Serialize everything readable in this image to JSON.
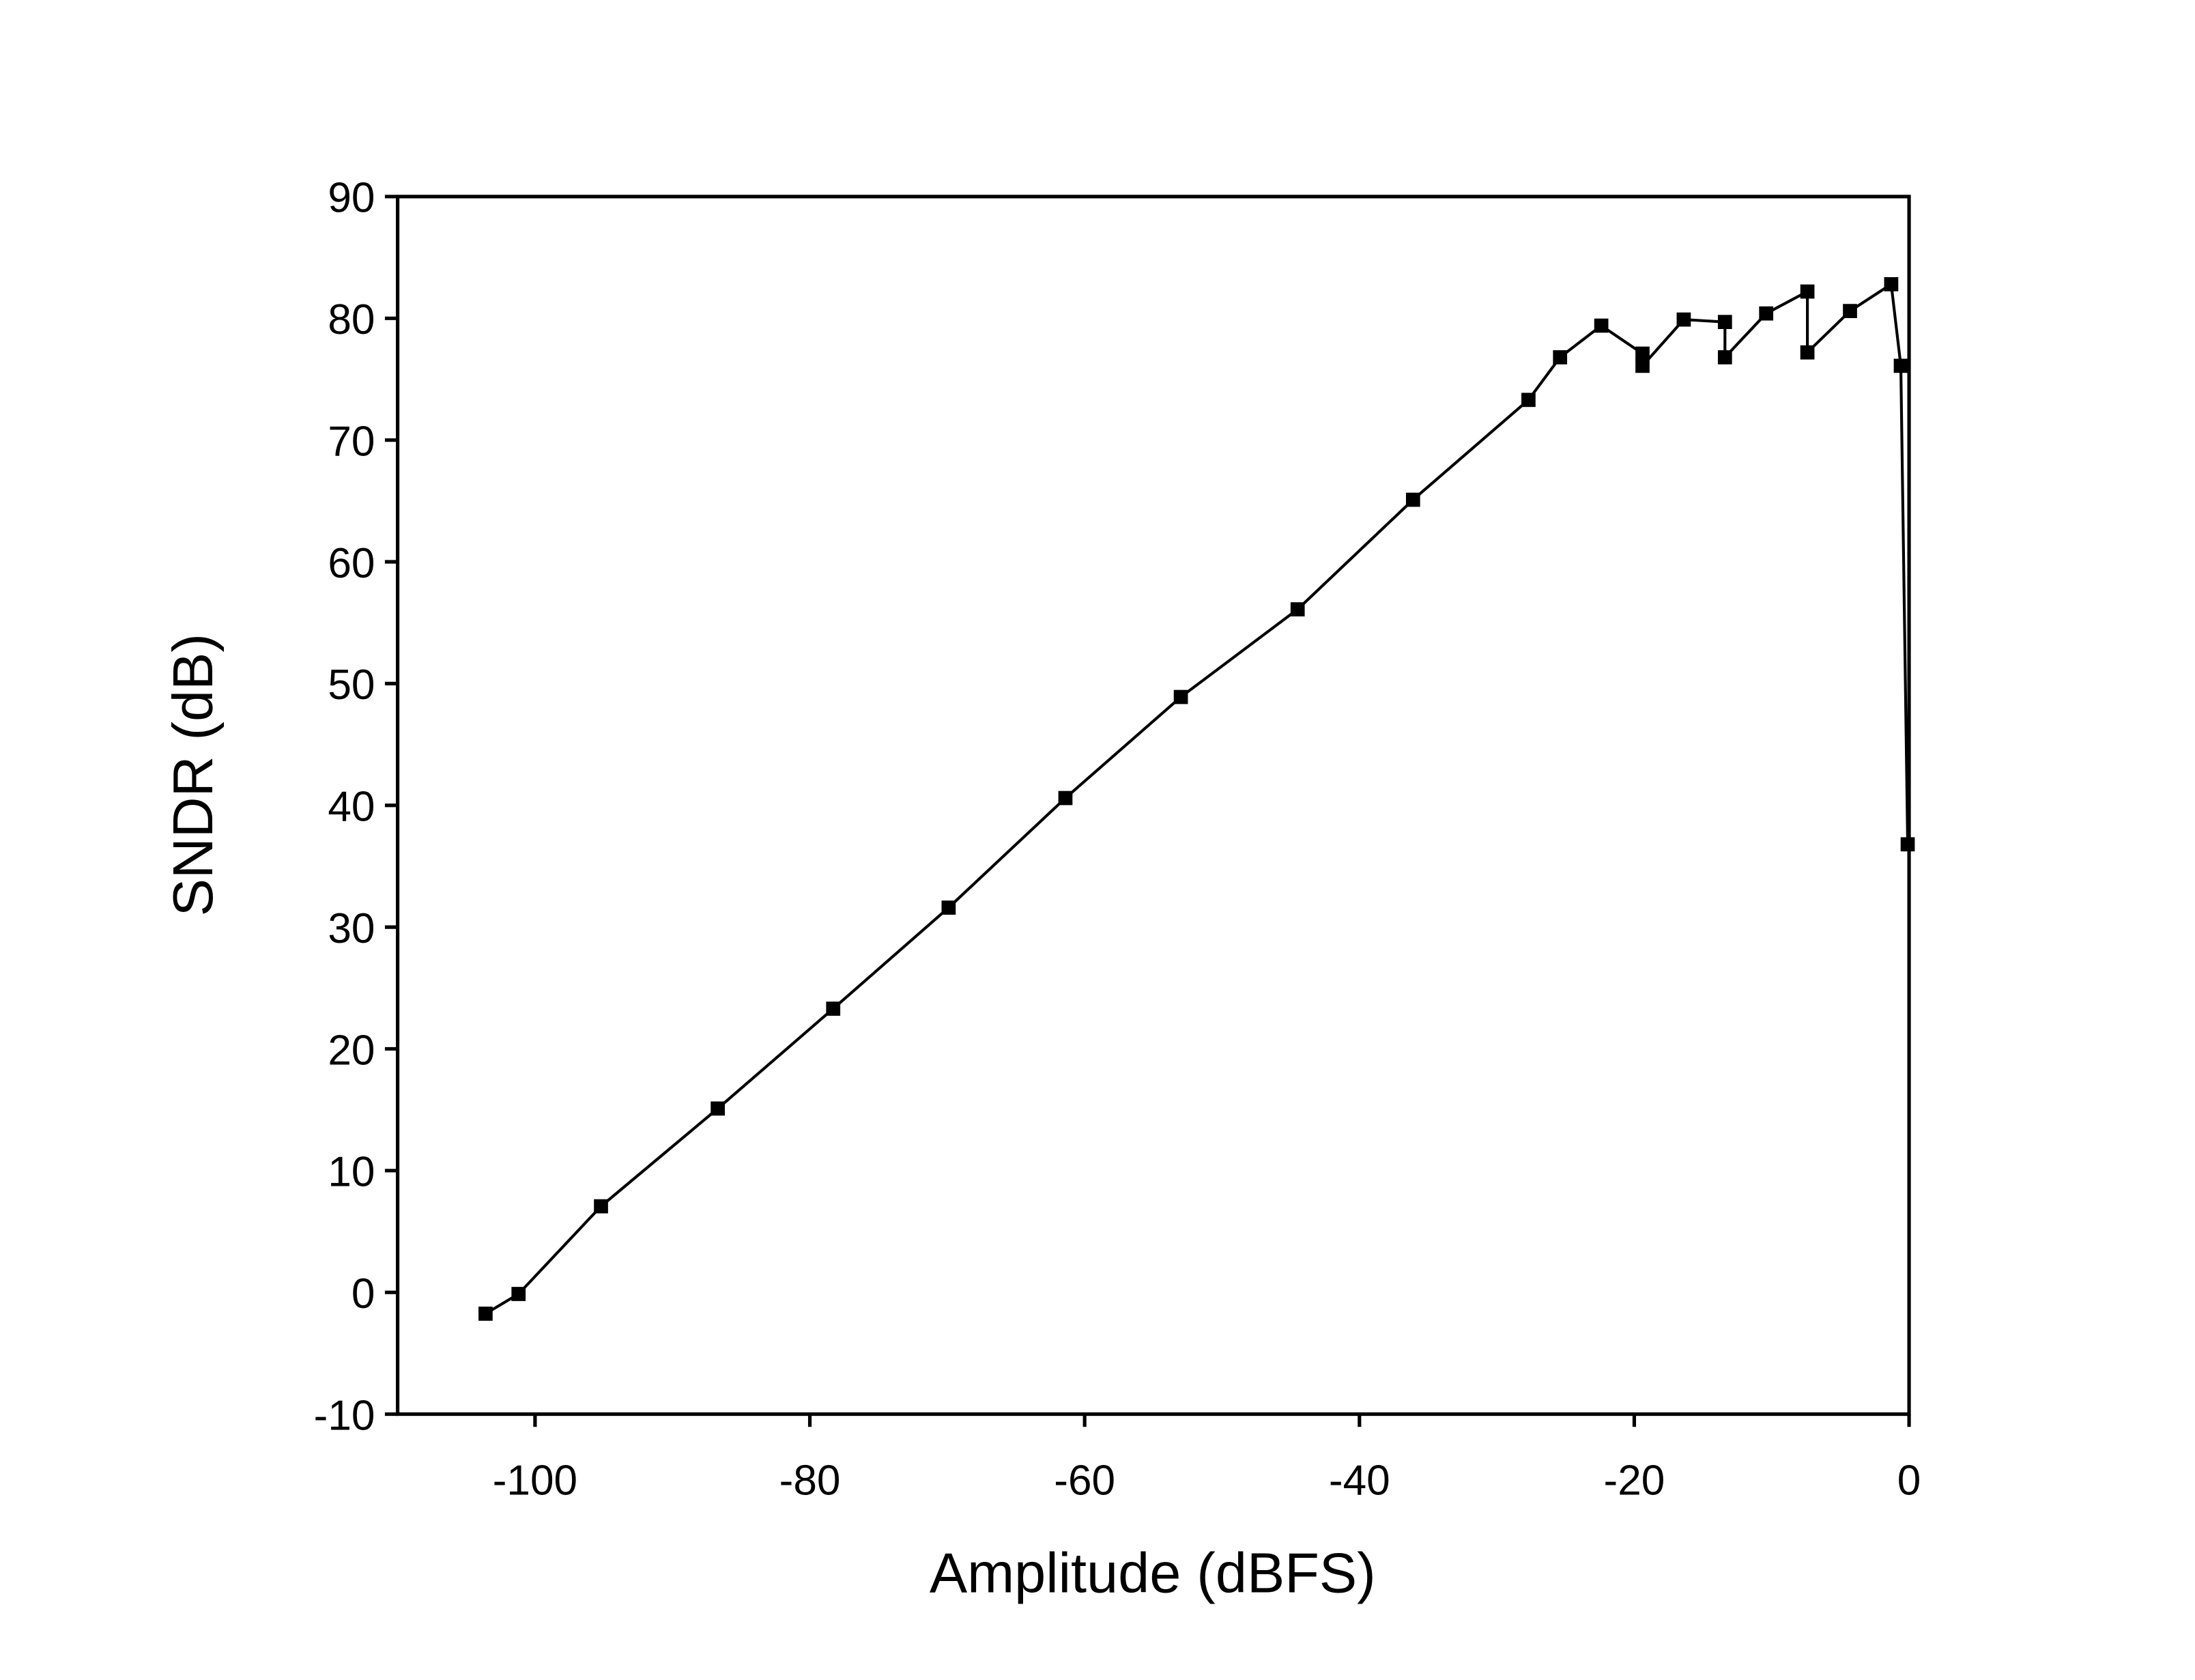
{
  "chart_data": {
    "type": "line",
    "x_label": "Amplitude (dBFS)",
    "y_label": "SNDR (dB)",
    "x": [
      -103.6,
      -101.2,
      -95.2,
      -86.7,
      -78.3,
      -69.9,
      -61.4,
      -53.0,
      -44.5,
      -36.1,
      -27.7,
      -25.4,
      -22.4,
      -19.4,
      -19.4,
      -16.4,
      -13.4,
      -13.4,
      -10.4,
      -7.4,
      -7.4,
      -4.3,
      -1.3,
      -0.6,
      -0.1
    ],
    "series": [
      {
        "color": "#000000",
        "values": [
          -1.75,
          -0.13,
          7.07,
          15.1,
          23.3,
          31.6,
          40.6,
          48.9,
          56.1,
          65.1,
          73.3,
          76.8,
          79.4,
          77.1,
          76.1,
          79.9,
          79.7,
          76.8,
          80.4,
          82.2,
          77.2,
          80.6,
          82.8,
          76.1,
          36.8
        ]
      }
    ],
    "xlim": [
      -110,
      0
    ],
    "xticks": [
      -100,
      -80,
      -60,
      -40,
      -20,
      0
    ],
    "ylim": [
      -10,
      90
    ],
    "yticks": [
      -10,
      0,
      10,
      20,
      30,
      40,
      50,
      60,
      70,
      80,
      90
    ],
    "grid": false
  }
}
